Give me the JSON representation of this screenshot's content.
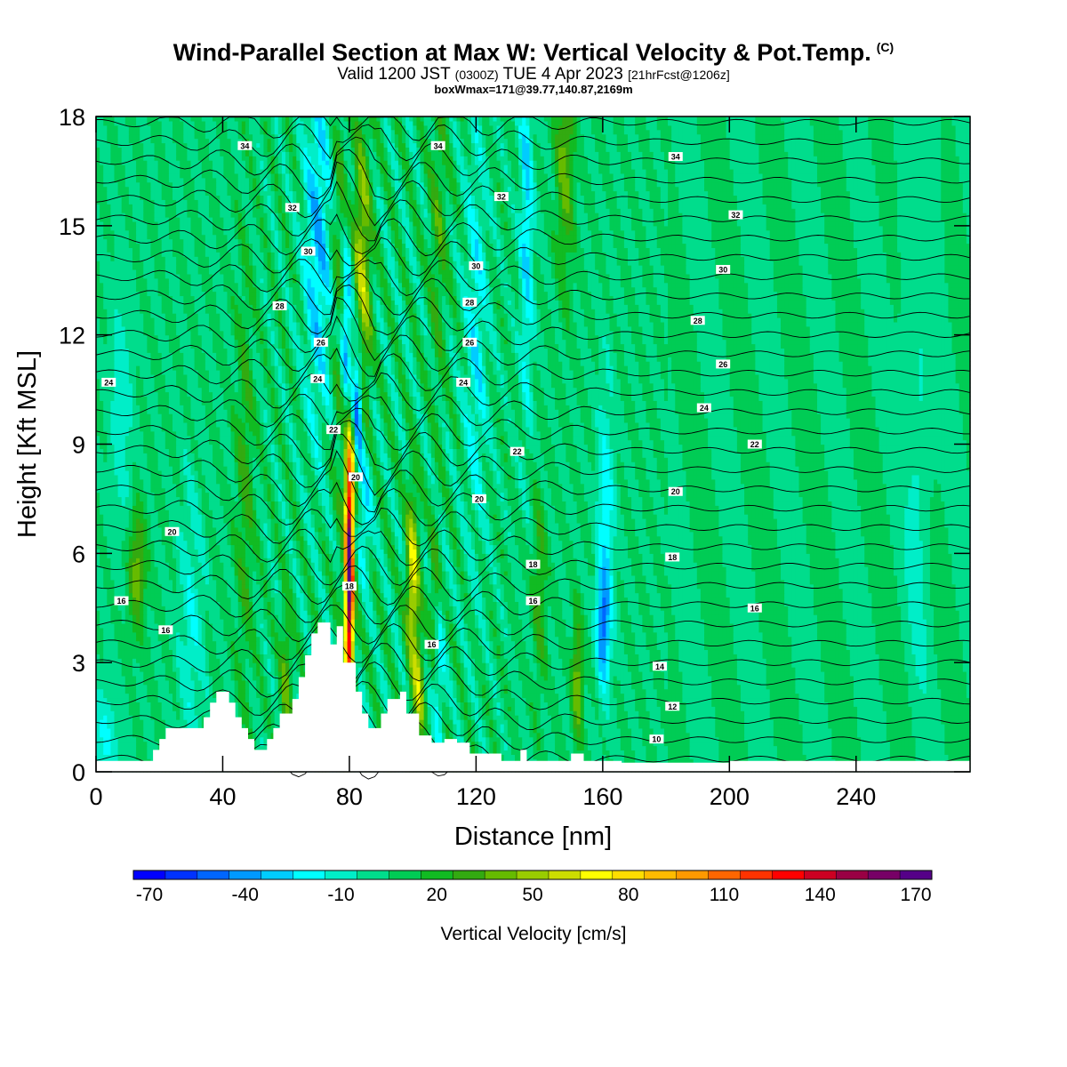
{
  "header": {
    "title": "Wind-Parallel Section at Max W: Vertical Velocity & Pot.Temp.",
    "title_mark": "(C)",
    "valid_prefix": "Valid 1200 JST",
    "valid_utc": "(0300Z)",
    "valid_date": "TUE 4 Apr 2023",
    "forecast_tag": "[21hrFcst@1206z]",
    "boxwmax": "boxWmax=171@39.77,140.87,2169m"
  },
  "chart_data": {
    "type": "heatmap",
    "xlabel": "Distance [nm]",
    "ylabel": "Height [Kft MSL]",
    "xlim": [
      0,
      276
    ],
    "ylim": [
      0,
      18
    ],
    "x_ticks": [
      0,
      40,
      80,
      120,
      160,
      200,
      240
    ],
    "y_ticks": [
      0,
      3,
      6,
      9,
      12,
      15,
      18
    ],
    "colorbar": {
      "label": "Vertical Velocity [cm/s]",
      "ticks": [
        "-70",
        "-40",
        "-10",
        "20",
        "50",
        "80",
        "110",
        "140",
        "170"
      ],
      "min": -75,
      "max": 180,
      "step": 10,
      "colors": [
        "#0000ff",
        "#0032ff",
        "#0066ff",
        "#0099ff",
        "#00ccff",
        "#00ffff",
        "#00eec8",
        "#00dd8c",
        "#00cc55",
        "#11bb22",
        "#33aa11",
        "#66bb00",
        "#99cc00",
        "#ccdd00",
        "#ffff00",
        "#ffdd00",
        "#ffbb00",
        "#ff9900",
        "#ff6600",
        "#ff3300",
        "#ff0000",
        "#cc0022",
        "#990044",
        "#770066",
        "#550088"
      ]
    },
    "background_w": 5,
    "terrain": [
      [
        0,
        0.3
      ],
      [
        18,
        0.3
      ],
      [
        18,
        0.6
      ],
      [
        20,
        0.6
      ],
      [
        20,
        0.9
      ],
      [
        22,
        0.9
      ],
      [
        22,
        1.2
      ],
      [
        34,
        1.2
      ],
      [
        34,
        1.5
      ],
      [
        36,
        1.5
      ],
      [
        36,
        1.9
      ],
      [
        38,
        1.9
      ],
      [
        38,
        2.2
      ],
      [
        42,
        2.2
      ],
      [
        42,
        1.9
      ],
      [
        44,
        1.9
      ],
      [
        44,
        1.5
      ],
      [
        46,
        1.5
      ],
      [
        46,
        1.2
      ],
      [
        48,
        1.2
      ],
      [
        48,
        0.9
      ],
      [
        50,
        0.9
      ],
      [
        50,
        0.6
      ],
      [
        54,
        0.6
      ],
      [
        54,
        0.9
      ],
      [
        56,
        0.9
      ],
      [
        56,
        1.2
      ],
      [
        58,
        1.2
      ],
      [
        58,
        1.6
      ],
      [
        62,
        1.6
      ],
      [
        62,
        2.0
      ],
      [
        64,
        2.0
      ],
      [
        64,
        2.6
      ],
      [
        66,
        2.6
      ],
      [
        66,
        3.2
      ],
      [
        68,
        3.2
      ],
      [
        68,
        3.8
      ],
      [
        70,
        3.8
      ],
      [
        70,
        4.1
      ],
      [
        74,
        4.1
      ],
      [
        74,
        3.5
      ],
      [
        76,
        3.5
      ],
      [
        76,
        4.0
      ],
      [
        78,
        4.0
      ],
      [
        78,
        3.0
      ],
      [
        82,
        3.0
      ],
      [
        82,
        2.2
      ],
      [
        84,
        2.2
      ],
      [
        84,
        1.6
      ],
      [
        86,
        1.6
      ],
      [
        86,
        1.2
      ],
      [
        90,
        1.2
      ],
      [
        90,
        1.6
      ],
      [
        92,
        1.6
      ],
      [
        92,
        2.0
      ],
      [
        96,
        2.0
      ],
      [
        96,
        2.2
      ],
      [
        98,
        2.2
      ],
      [
        98,
        1.6
      ],
      [
        102,
        1.6
      ],
      [
        102,
        1.0
      ],
      [
        106,
        1.0
      ],
      [
        106,
        0.8
      ],
      [
        110,
        0.8
      ],
      [
        110,
        0.9
      ],
      [
        114,
        0.9
      ],
      [
        114,
        0.8
      ],
      [
        118,
        0.8
      ],
      [
        118,
        0.5
      ],
      [
        128,
        0.5
      ],
      [
        128,
        0.3
      ],
      [
        134,
        0.3
      ],
      [
        134,
        0.6
      ],
      [
        136,
        0.6
      ],
      [
        136,
        0.3
      ],
      [
        150,
        0.3
      ],
      [
        150,
        0.5
      ],
      [
        154,
        0.5
      ],
      [
        154,
        0.3
      ],
      [
        166,
        0.3
      ],
      [
        166,
        0.25
      ],
      [
        200,
        0.25
      ],
      [
        200,
        0.3
      ],
      [
        276,
        0.3
      ]
    ],
    "updrafts": [
      {
        "x": 80,
        "z": 5.5,
        "w": 178,
        "sx": 1.0,
        "sz": 2.6
      },
      {
        "x": 81.5,
        "z": 8.6,
        "w": 40,
        "sx": 1.2,
        "sz": 0.9
      },
      {
        "x": 100,
        "z": 5.2,
        "w": 65,
        "sx": 1.4,
        "sz": 1.8
      },
      {
        "x": 102,
        "z": 2.2,
        "w": 55,
        "sx": 1.2,
        "sz": 1.0
      },
      {
        "x": 84,
        "z": 13.5,
        "w": 60,
        "sx": 2.0,
        "sz": 3.0
      },
      {
        "x": 13,
        "z": 5.6,
        "w": 45,
        "sx": 2.0,
        "sz": 1.2
      },
      {
        "x": 152,
        "z": 2.5,
        "w": 48,
        "sx": 1.2,
        "sz": 1.2
      },
      {
        "x": 148,
        "z": 17.0,
        "w": 42,
        "sx": 2.0,
        "sz": 2.5
      },
      {
        "x": 60,
        "z": 2.5,
        "w": 38,
        "sx": 1.3,
        "sz": 1.5
      },
      {
        "x": 107,
        "z": 4.5,
        "w": 40,
        "sx": 1.2,
        "sz": 1.5
      },
      {
        "x": 140,
        "z": 5.0,
        "w": 30,
        "sx": 1.5,
        "sz": 2.0
      },
      {
        "x": 77,
        "z": 13.0,
        "w": 35,
        "sx": 1.5,
        "sz": 4.0
      },
      {
        "x": 47,
        "z": 8.0,
        "w": 28,
        "sx": 2.0,
        "sz": 4.0
      },
      {
        "x": 108,
        "z": 15.0,
        "w": 28,
        "sx": 2.0,
        "sz": 3.0
      }
    ],
    "downdrafts": [
      {
        "x": 82.5,
        "z": 10.0,
        "w": -70,
        "sx": 1.2,
        "sz": 1.4
      },
      {
        "x": 79,
        "z": 12.0,
        "w": -55,
        "sx": 1.4,
        "sz": 1.8
      },
      {
        "x": 85,
        "z": 7.2,
        "w": -30,
        "sx": 1.5,
        "sz": 1.3
      },
      {
        "x": 70,
        "z": 14.5,
        "w": -35,
        "sx": 3.0,
        "sz": 3.5
      },
      {
        "x": 160,
        "z": 4.0,
        "w": -40,
        "sx": 1.4,
        "sz": 1.0
      },
      {
        "x": 161,
        "z": 6.5,
        "w": -25,
        "sx": 2.0,
        "sz": 3.0
      },
      {
        "x": 136,
        "z": 15.5,
        "w": -30,
        "sx": 1.5,
        "sz": 4.0
      },
      {
        "x": 120,
        "z": 12.0,
        "w": -22,
        "sx": 2.5,
        "sz": 4.0
      },
      {
        "x": 108,
        "z": 3.0,
        "w": -30,
        "sx": 1.4,
        "sz": 1.6
      },
      {
        "x": 3,
        "z": 1.0,
        "w": -18,
        "sx": 3.5,
        "sz": 1.0
      },
      {
        "x": 8,
        "z": 10.0,
        "w": -15,
        "sx": 2.5,
        "sz": 2.5
      },
      {
        "x": 30,
        "z": 4.0,
        "w": -15,
        "sx": 3.0,
        "sz": 3.0
      },
      {
        "x": 260,
        "z": 9.0,
        "w": -10,
        "sx": 3.0,
        "sz": 4.0
      }
    ],
    "theta_label_points": [
      {
        "x": 47,
        "z": 17.2,
        "label": "34"
      },
      {
        "x": 108,
        "z": 17.2,
        "label": "34"
      },
      {
        "x": 183,
        "z": 16.9,
        "label": "34"
      },
      {
        "x": 62,
        "z": 15.5,
        "label": "32"
      },
      {
        "x": 128,
        "z": 15.8,
        "label": "32"
      },
      {
        "x": 202,
        "z": 15.3,
        "label": "32"
      },
      {
        "x": 67,
        "z": 14.3,
        "label": "30"
      },
      {
        "x": 120,
        "z": 13.9,
        "label": "30"
      },
      {
        "x": 198,
        "z": 13.8,
        "label": "30"
      },
      {
        "x": 58,
        "z": 12.8,
        "label": "28"
      },
      {
        "x": 118,
        "z": 12.9,
        "label": "28"
      },
      {
        "x": 190,
        "z": 12.4,
        "label": "28"
      },
      {
        "x": 71,
        "z": 11.8,
        "label": "26"
      },
      {
        "x": 118,
        "z": 11.8,
        "label": "26"
      },
      {
        "x": 198,
        "z": 11.2,
        "label": "26"
      },
      {
        "x": 4,
        "z": 10.7,
        "label": "24"
      },
      {
        "x": 70,
        "z": 10.8,
        "label": "24"
      },
      {
        "x": 116,
        "z": 10.7,
        "label": "24"
      },
      {
        "x": 192,
        "z": 10.0,
        "label": "24"
      },
      {
        "x": 75,
        "z": 9.4,
        "label": "22"
      },
      {
        "x": 133,
        "z": 8.8,
        "label": "22"
      },
      {
        "x": 208,
        "z": 9.0,
        "label": "22"
      },
      {
        "x": 82,
        "z": 8.1,
        "label": "20"
      },
      {
        "x": 24,
        "z": 6.6,
        "label": "20"
      },
      {
        "x": 121,
        "z": 7.5,
        "label": "20"
      },
      {
        "x": 183,
        "z": 7.7,
        "label": "20"
      },
      {
        "x": 138,
        "z": 5.7,
        "label": "18"
      },
      {
        "x": 80,
        "z": 5.1,
        "label": "18"
      },
      {
        "x": 182,
        "z": 5.9,
        "label": "18"
      },
      {
        "x": 8,
        "z": 4.7,
        "label": "16"
      },
      {
        "x": 138,
        "z": 4.7,
        "label": "16"
      },
      {
        "x": 208,
        "z": 4.5,
        "label": "16"
      },
      {
        "x": 22,
        "z": 3.9,
        "label": "16"
      },
      {
        "x": 106,
        "z": 3.5,
        "label": "16"
      },
      {
        "x": 178,
        "z": 2.9,
        "label": "14"
      },
      {
        "x": 182,
        "z": 1.8,
        "label": "12"
      },
      {
        "x": 177,
        "z": 0.9,
        "label": "10"
      }
    ]
  }
}
